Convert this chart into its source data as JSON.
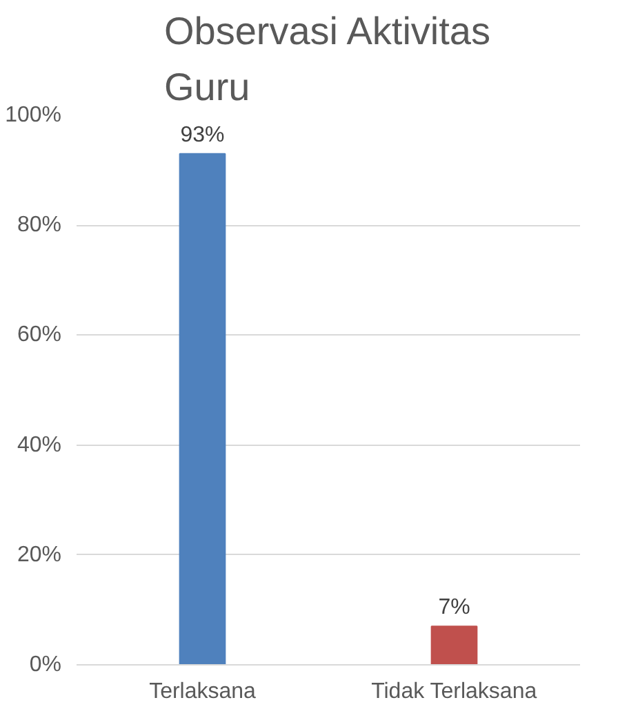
{
  "chart_data": {
    "type": "bar",
    "title": "Observasi Aktivitas Guru",
    "categories": [
      "Terlaksana",
      "Tidak Terlaksana"
    ],
    "values": [
      93,
      7
    ],
    "colors": [
      "#4f81bd",
      "#c0504d"
    ],
    "value_labels": [
      "93%",
      "7%"
    ],
    "ylim": [
      0,
      100
    ],
    "yticks": [
      {
        "value": 0,
        "label": "0%"
      },
      {
        "value": 20,
        "label": "20%"
      },
      {
        "value": 40,
        "label": "40%"
      },
      {
        "value": 60,
        "label": "60%"
      },
      {
        "value": 80,
        "label": "80%"
      },
      {
        "value": 100,
        "label": "100%"
      }
    ],
    "grid": "y"
  }
}
